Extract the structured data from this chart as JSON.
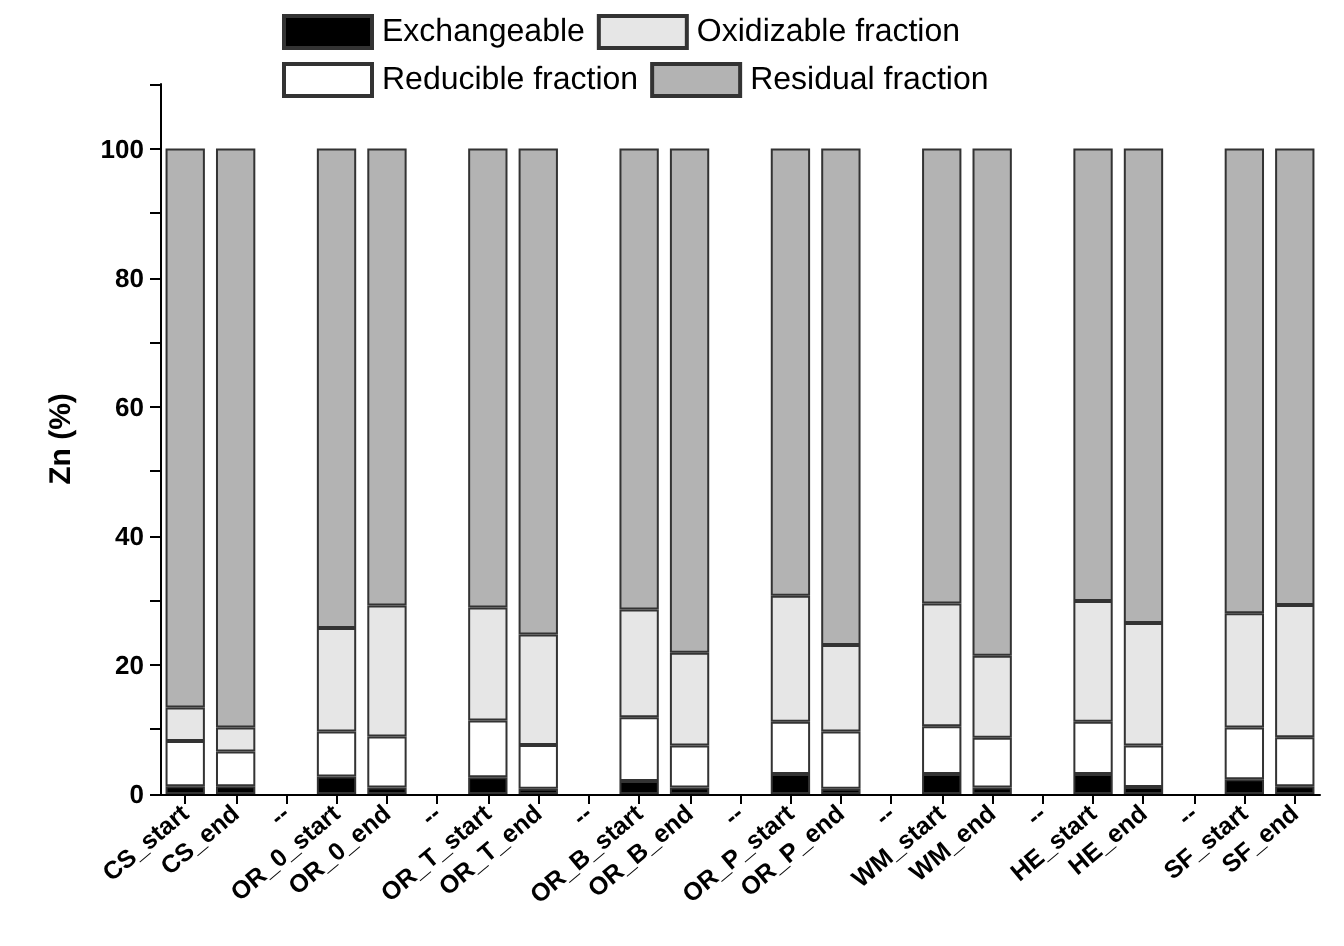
{
  "chart_data": {
    "type": "bar",
    "stacked": true,
    "ylabel": "Zn (%)",
    "legend": "top",
    "grid": false,
    "categories": [
      "CS_start",
      "CS_end",
      "--",
      "OR_0_start",
      "OR_0_end",
      "--",
      "OR_T_start",
      "OR_T_end",
      "--",
      "OR_B_start",
      "OR_B_end",
      "--",
      "OR_P_start",
      "OR_P_end",
      "--",
      "WM_start",
      "WM_end",
      "--",
      "HE_start",
      "HE_end",
      "--",
      "SF_start",
      "SF_end"
    ],
    "ylim": [
      0,
      110
    ],
    "yticks": [
      0,
      {
        "value": 10,
        "label": null
      },
      20,
      {
        "value": 30,
        "label": null
      },
      40,
      {
        "value": 50,
        "label": null
      },
      60,
      {
        "value": 70,
        "label": null
      },
      80,
      {
        "value": 90,
        "label": null
      },
      100,
      {
        "value": 110,
        "label": null
      }
    ],
    "series": [
      {
        "name": "Exchangeable",
        "color": "#000000",
        "values": [
          1.2,
          1.2,
          null,
          2.7,
          1.0,
          null,
          2.6,
          0.8,
          null,
          2.0,
          1.0,
          null,
          3.1,
          0.8,
          null,
          3.1,
          1.0,
          null,
          3.1,
          1.1,
          null,
          2.3,
          1.2
        ]
      },
      {
        "name": "Reducible fraction",
        "color": "#ffffff",
        "values": [
          7.0,
          5.4,
          null,
          7.0,
          7.9,
          null,
          8.8,
          6.8,
          null,
          9.9,
          6.5,
          null,
          8.1,
          8.9,
          null,
          7.4,
          7.7,
          null,
          8.1,
          6.4,
          null,
          8.0,
          7.6
        ]
      },
      {
        "name": "Oxidizable fraction",
        "color": "#e6e6e6",
        "values": [
          5.2,
          3.7,
          null,
          16.0,
          20.3,
          null,
          17.5,
          17.1,
          null,
          16.7,
          14.4,
          null,
          19.5,
          13.4,
          null,
          19.0,
          12.7,
          null,
          18.7,
          19.0,
          null,
          17.7,
          20.5
        ]
      },
      {
        "name": "Residual fraction",
        "color": "#b3b3b3",
        "values": [
          86.6,
          89.7,
          null,
          74.3,
          70.8,
          null,
          71.1,
          75.3,
          null,
          71.4,
          78.1,
          null,
          69.3,
          76.9,
          null,
          70.5,
          78.6,
          null,
          70.1,
          73.5,
          null,
          72.0,
          70.7
        ]
      }
    ]
  }
}
